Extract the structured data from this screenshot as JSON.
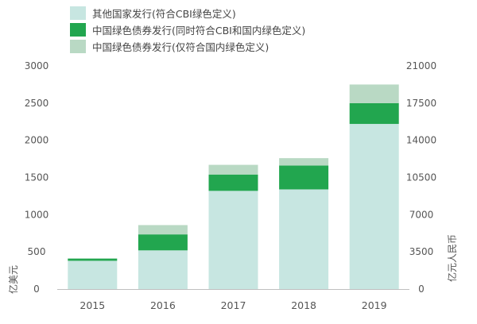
{
  "chart_data": {
    "type": "bar",
    "stacked": true,
    "categories": [
      "2015",
      "2016",
      "2017",
      "2018",
      "2019"
    ],
    "series": [
      {
        "name": "其他国家发行(符合CBI绿色定义)",
        "color": "#c7e6e1",
        "values": [
          380,
          520,
          1320,
          1340,
          2220
        ]
      },
      {
        "name": "中国绿色债券发行(同时符合CBI和国内绿色定义)",
        "color": "#22a64f",
        "values": [
          30,
          215,
          220,
          320,
          280
        ]
      },
      {
        "name": "中国绿色债券发行(仅符合国内绿色定义)",
        "color": "#b9d9c4",
        "values": [
          0,
          125,
          130,
          100,
          250
        ]
      }
    ],
    "ylim": [
      0,
      3000
    ],
    "yticks": [
      "3000",
      "2500",
      "2000",
      "1500",
      "1000",
      "500",
      "0"
    ],
    "y2lim": [
      0,
      21000
    ],
    "y2ticks": [
      "21000",
      "17500",
      "14000",
      "10500",
      "7000",
      "3500",
      "0"
    ],
    "ylabel": "亿美元",
    "y2label": "亿元人民币",
    "legend_position": "top-left",
    "grid": false
  }
}
